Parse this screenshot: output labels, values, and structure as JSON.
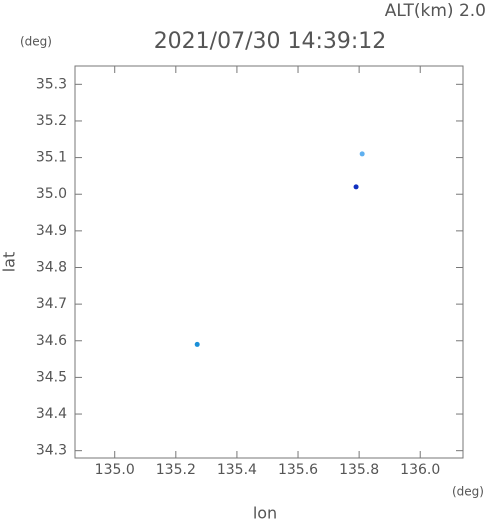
{
  "chart_data": {
    "type": "scatter",
    "title": "2021/07/30 14:39:12",
    "annotation": "ALT(km)  2.0",
    "y_unit": "(deg)",
    "x_unit": "(deg)",
    "xlabel": "lon",
    "ylabel": "lat",
    "x": [
      135.27,
      135.81,
      135.79
    ],
    "y": [
      34.59,
      35.11,
      35.02
    ],
    "colors": [
      "#1a8fd8",
      "#5fb0f0",
      "#1030c0"
    ],
    "xlim": [
      134.87,
      136.14
    ],
    "ylim": [
      34.28,
      35.35
    ],
    "xticks": [
      {
        "value": 135,
        "label": "135.0"
      },
      {
        "value": 135.2,
        "label": "135.2"
      },
      {
        "value": 135.4,
        "label": "135.4"
      },
      {
        "value": 135.6,
        "label": "135.6"
      },
      {
        "value": 135.8,
        "label": "135.8"
      },
      {
        "value": 136,
        "label": "136.0"
      }
    ],
    "yticks": [
      34.3,
      34.4,
      34.5,
      34.6,
      34.7,
      34.8,
      34.9,
      {
        "value": 35,
        "label": "35.0"
      },
      35.1,
      35.2,
      35.3
    ]
  }
}
